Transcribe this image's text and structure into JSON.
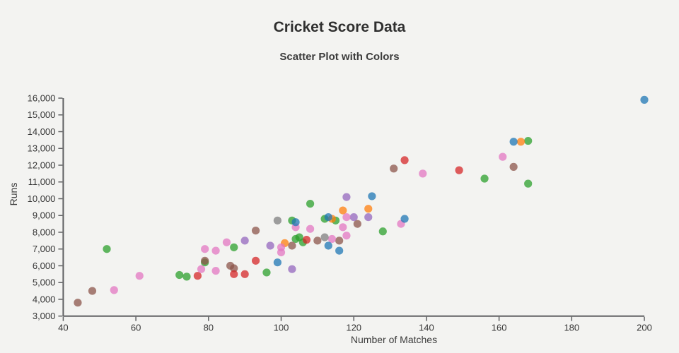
{
  "header": {
    "title": "Cricket Score Data",
    "subtitle": "Scatter Plot with Colors"
  },
  "colors": {
    "background": "#f3f3f1",
    "axis": "#5f6062",
    "text": "#333333"
  },
  "chart_data": {
    "type": "scatter",
    "title": "Cricket Score Data",
    "subtitle": "Scatter Plot with Colors",
    "xlabel": "Number of Matches",
    "ylabel": "Runs",
    "xlim": [
      40,
      200
    ],
    "ylim": [
      3000,
      16000
    ],
    "xticks": [
      40,
      60,
      80,
      100,
      120,
      140,
      160,
      180,
      200
    ],
    "yticks": [
      3000,
      4000,
      5000,
      6000,
      7000,
      8000,
      9000,
      10000,
      11000,
      12000,
      13000,
      14000,
      15000,
      16000
    ],
    "grid": false,
    "legend_position": "none",
    "marker_opacity": 0.75,
    "marker_radius": 5.6,
    "series": [
      {
        "name": "green",
        "color": "#2ca02c",
        "points": [
          [
            52,
            7000
          ],
          [
            72,
            5450
          ],
          [
            74,
            5350
          ],
          [
            79,
            6200
          ],
          [
            87,
            7100
          ],
          [
            96,
            5600
          ],
          [
            103,
            8700
          ],
          [
            104,
            7600
          ],
          [
            105,
            7700
          ],
          [
            106,
            7400
          ],
          [
            108,
            9700
          ],
          [
            112,
            8800
          ],
          [
            115,
            8700
          ],
          [
            128,
            8050
          ],
          [
            156,
            11200
          ],
          [
            168,
            13450
          ],
          [
            168,
            10900
          ]
        ]
      },
      {
        "name": "orange",
        "color": "#ff7f0e",
        "points": [
          [
            101,
            7350
          ],
          [
            114,
            8800
          ],
          [
            117,
            9300
          ],
          [
            124,
            9400
          ],
          [
            166,
            13400
          ]
        ]
      },
      {
        "name": "brown",
        "color": "#8c564b",
        "points": [
          [
            44,
            3800
          ],
          [
            48,
            4500
          ],
          [
            79,
            6300
          ],
          [
            86,
            6000
          ],
          [
            87,
            5850
          ],
          [
            93,
            8100
          ],
          [
            103,
            7200
          ],
          [
            110,
            7500
          ],
          [
            116,
            7500
          ],
          [
            121,
            8500
          ],
          [
            131,
            11800
          ],
          [
            164,
            11900
          ]
        ]
      },
      {
        "name": "red",
        "color": "#d62728",
        "points": [
          [
            77,
            5400
          ],
          [
            87,
            5500
          ],
          [
            90,
            5500
          ],
          [
            93,
            6300
          ],
          [
            107,
            7550
          ],
          [
            134,
            12300
          ],
          [
            149,
            11700
          ]
        ]
      },
      {
        "name": "purple",
        "color": "#9467bd",
        "points": [
          [
            90,
            7500
          ],
          [
            97,
            7200
          ],
          [
            103,
            5800
          ],
          [
            118,
            10100
          ],
          [
            120,
            8900
          ],
          [
            124,
            8900
          ]
        ]
      },
      {
        "name": "pink",
        "color": "#e377c2",
        "points": [
          [
            54,
            4550
          ],
          [
            61,
            5400
          ],
          [
            78,
            5800
          ],
          [
            79,
            7000
          ],
          [
            82,
            5700
          ],
          [
            82,
            6900
          ],
          [
            85,
            7400
          ],
          [
            100,
            6800
          ],
          [
            100,
            7100
          ],
          [
            104,
            8300
          ],
          [
            108,
            8200
          ],
          [
            114,
            7600
          ],
          [
            117,
            8300
          ],
          [
            118,
            7800
          ],
          [
            118,
            8900
          ],
          [
            133,
            8500
          ],
          [
            139,
            11500
          ],
          [
            161,
            12500
          ]
        ]
      },
      {
        "name": "gray",
        "color": "#7f7f7f",
        "points": [
          [
            99,
            8700
          ],
          [
            112,
            7700
          ]
        ]
      },
      {
        "name": "blue",
        "color": "#1f77b4",
        "points": [
          [
            99,
            6200
          ],
          [
            104,
            8600
          ],
          [
            113,
            8900
          ],
          [
            113,
            7200
          ],
          [
            116,
            6900
          ],
          [
            125,
            10150
          ],
          [
            134,
            8800
          ],
          [
            164,
            13400
          ],
          [
            200,
            15900
          ]
        ]
      }
    ]
  }
}
